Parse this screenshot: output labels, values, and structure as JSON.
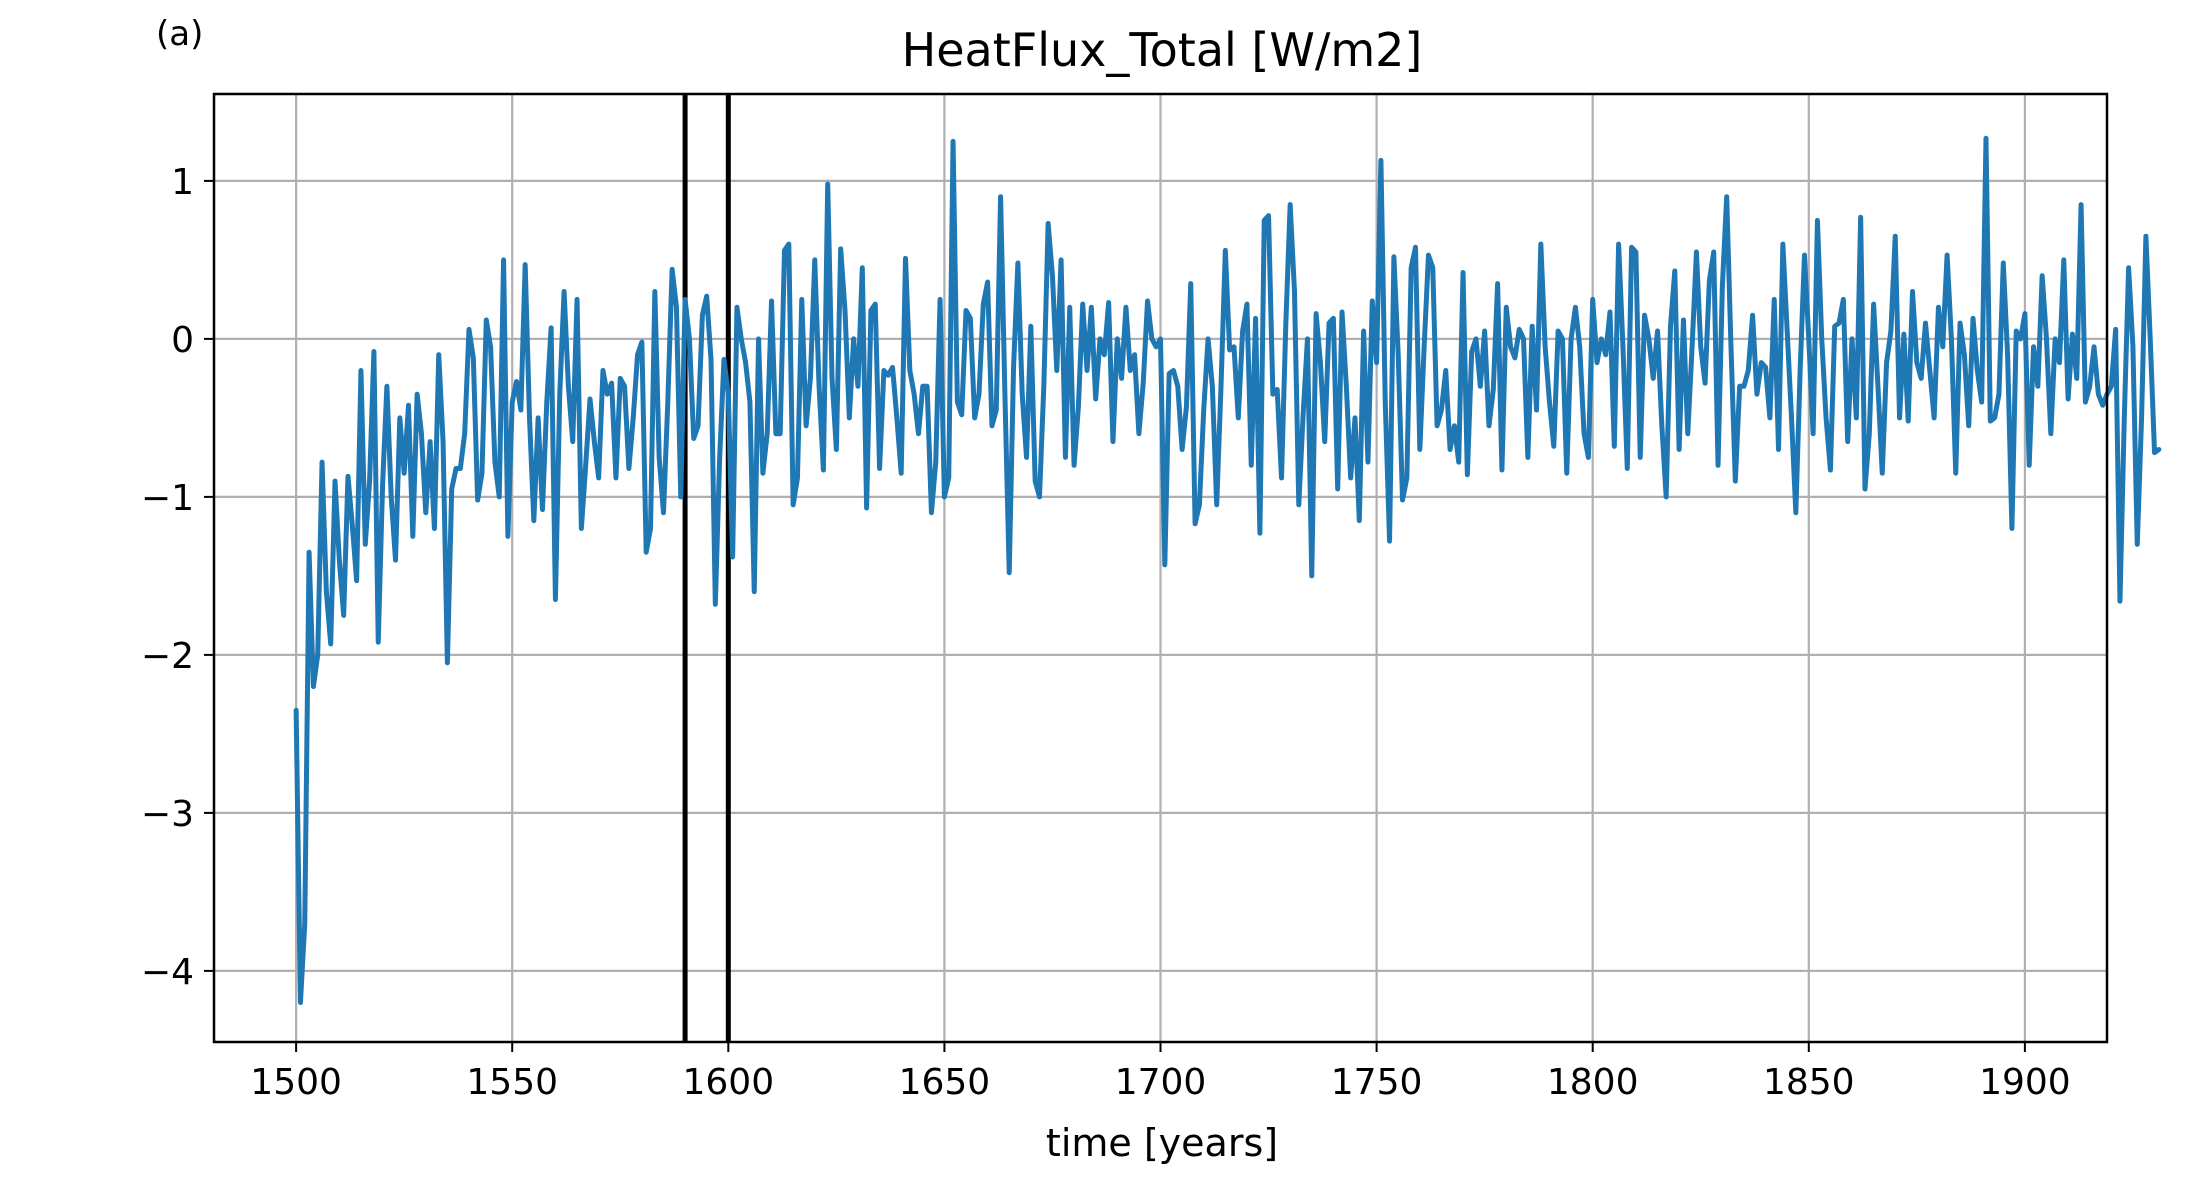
{
  "panel_label": "(a)",
  "chart_data": {
    "type": "line",
    "title": "HeatFlux_Total [W/m2]",
    "xlabel": "time [years]",
    "ylabel": "",
    "xlim": [
      1481,
      1919
    ],
    "ylim": [
      -4.45,
      1.55
    ],
    "grid": true,
    "x_ticks": [
      1500,
      1550,
      1600,
      1650,
      1700,
      1750,
      1800,
      1850,
      1900
    ],
    "x_tick_labels": [
      "1500",
      "1550",
      "1600",
      "1650",
      "1700",
      "1750",
      "1800",
      "1850",
      "1900"
    ],
    "y_ticks": [
      1,
      0,
      -1,
      -2,
      -3,
      -4
    ],
    "y_tick_labels": [
      "1",
      "0",
      "−1",
      "−2",
      "−3",
      "−4"
    ],
    "vertical_lines": [
      1590,
      1600
    ],
    "vertical_line_color": "#000000",
    "series": [
      {
        "color": "#1f77b4",
        "x_start": 1500,
        "x_step": 1,
        "values": [
          -2.35,
          -4.2,
          -3.7,
          -1.35,
          -2.2,
          -2.0,
          -0.78,
          -1.6,
          -1.93,
          -0.9,
          -1.4,
          -1.75,
          -0.87,
          -1.18,
          -1.53,
          -0.2,
          -1.3,
          -0.9,
          -0.08,
          -1.92,
          -0.93,
          -0.3,
          -1.0,
          -1.4,
          -0.5,
          -0.85,
          -0.42,
          -1.25,
          -0.35,
          -0.6,
          -1.1,
          -0.65,
          -1.2,
          -0.1,
          -0.65,
          -2.05,
          -0.95,
          -0.82,
          -0.82,
          -0.6,
          0.06,
          -0.12,
          -1.02,
          -0.85,
          0.12,
          -0.05,
          -0.78,
          -1.0,
          0.5,
          -1.25,
          -0.4,
          -0.27,
          -0.45,
          0.47,
          -0.5,
          -1.15,
          -0.5,
          -1.08,
          -0.4,
          0.07,
          -1.65,
          -0.35,
          0.3,
          -0.3,
          -0.65,
          0.25,
          -1.2,
          -0.8,
          -0.38,
          -0.65,
          -0.88,
          -0.2,
          -0.35,
          -0.28,
          -0.88,
          -0.25,
          -0.3,
          -0.82,
          -0.5,
          -0.1,
          -0.02,
          -1.35,
          -1.2,
          0.3,
          -0.75,
          -1.1,
          -0.4,
          0.44,
          0.2,
          -1.0,
          0.25,
          0.0,
          -0.63,
          -0.55,
          0.15,
          0.27,
          -0.13,
          -1.68,
          -0.75,
          -0.13,
          -0.35,
          -1.38,
          0.2,
          0.0,
          -0.15,
          -0.4,
          -1.6,
          0.0,
          -0.85,
          -0.6,
          0.24,
          -0.6,
          -0.6,
          0.56,
          0.6,
          -1.05,
          -0.88,
          0.25,
          -0.55,
          -0.25,
          0.5,
          -0.3,
          -0.83,
          0.98,
          -0.25,
          -0.7,
          0.57,
          0.18,
          -0.5,
          0.0,
          -0.3,
          0.45,
          -1.07,
          0.18,
          0.22,
          -0.82,
          -0.2,
          -0.23,
          -0.18,
          -0.5,
          -0.85,
          0.51,
          -0.2,
          -0.35,
          -0.6,
          -0.3,
          -0.3,
          -1.1,
          -0.78,
          0.25,
          -1.0,
          -0.88,
          1.25,
          -0.4,
          -0.48,
          0.18,
          0.13,
          -0.5,
          -0.35,
          0.22,
          0.36,
          -0.55,
          -0.45,
          0.9,
          -0.35,
          -1.48,
          -0.18,
          0.48,
          -0.35,
          -0.75,
          0.08,
          -0.9,
          -1.0,
          -0.3,
          0.73,
          0.4,
          -0.2,
          0.5,
          -0.75,
          0.2,
          -0.8,
          -0.43,
          0.22,
          -0.2,
          0.2,
          -0.38,
          0.0,
          -0.1,
          0.23,
          -0.65,
          0.0,
          -0.25,
          0.2,
          -0.2,
          -0.1,
          -0.6,
          -0.28,
          0.24,
          0.0,
          -0.05,
          0.0,
          -1.43,
          -0.22,
          -0.2,
          -0.3,
          -0.7,
          -0.43,
          0.35,
          -1.17,
          -1.05,
          -0.45,
          0.0,
          -0.3,
          -1.05,
          -0.3,
          0.56,
          -0.07,
          -0.05,
          -0.5,
          0.05,
          0.22,
          -0.8,
          0.13,
          -1.23,
          0.75,
          0.78,
          -0.35,
          -0.32,
          -0.88,
          0.1,
          0.85,
          0.3,
          -1.05,
          -0.48,
          0.0,
          -1.5,
          0.16,
          -0.15,
          -0.65,
          0.1,
          0.13,
          -0.95,
          0.17,
          -0.3,
          -0.88,
          -0.5,
          -1.15,
          0.05,
          -0.78,
          0.24,
          -0.15,
          1.13,
          -0.4,
          -1.28,
          0.52,
          -0.1,
          -1.02,
          -0.88,
          0.45,
          0.58,
          -0.7,
          -0.05,
          0.53,
          0.45,
          -0.55,
          -0.45,
          -0.2,
          -0.7,
          -0.55,
          -0.78,
          0.42,
          -0.86,
          -0.08,
          0.0,
          -0.3,
          0.05,
          -0.55,
          -0.32,
          0.35,
          -0.83,
          0.2,
          -0.05,
          -0.12,
          0.06,
          0.0,
          -0.75,
          0.08,
          -0.45,
          0.6,
          -0.05,
          -0.4,
          -0.68,
          0.05,
          0.0,
          -0.85,
          0.0,
          0.2,
          -0.05,
          -0.6,
          -0.75,
          0.25,
          -0.15,
          0.0,
          -0.1,
          0.17,
          -0.68,
          0.6,
          -0.05,
          -0.82,
          0.58,
          0.55,
          -0.75,
          0.15,
          0.0,
          -0.25,
          0.05,
          -0.55,
          -1.0,
          0.08,
          0.43,
          -0.7,
          0.12,
          -0.6,
          -0.05,
          0.55,
          -0.05,
          -0.28,
          0.37,
          0.55,
          -0.8,
          0.33,
          0.9,
          -0.05,
          -0.9,
          -0.3,
          -0.3,
          -0.2,
          0.15,
          -0.35,
          -0.15,
          -0.18,
          -0.5,
          0.25,
          -0.7,
          0.6,
          0.05,
          -0.5,
          -1.1,
          -0.2,
          0.53,
          0.0,
          -0.6,
          0.75,
          0.0,
          -0.5,
          -0.83,
          0.08,
          0.1,
          0.25,
          -0.65,
          0.0,
          -0.5,
          0.77,
          -0.95,
          -0.6,
          0.22,
          -0.3,
          -0.85,
          -0.15,
          0.05,
          0.65,
          -0.5,
          0.03,
          -0.52,
          0.3,
          -0.15,
          -0.25,
          0.1,
          -0.2,
          -0.5,
          0.2,
          -0.05,
          0.53,
          0.0,
          -0.85,
          0.1,
          -0.1,
          -0.55,
          0.13,
          -0.2,
          -0.4,
          1.27,
          -0.52,
          -0.5,
          -0.35,
          0.48,
          -0.1,
          -1.2,
          0.05,
          0.0,
          0.16,
          -0.8,
          -0.05,
          -0.3,
          0.4,
          0.0,
          -0.6,
          0.0,
          -0.15,
          0.5,
          -0.38,
          0.03,
          -0.25,
          0.85,
          -0.4,
          -0.3,
          -0.05,
          -0.35,
          -0.42,
          -0.35,
          -0.3,
          0.06,
          -1.66,
          -0.5,
          0.45,
          -0.05,
          -1.3,
          -0.5,
          0.65,
          0.0,
          -0.72,
          -0.7
        ]
      }
    ]
  }
}
